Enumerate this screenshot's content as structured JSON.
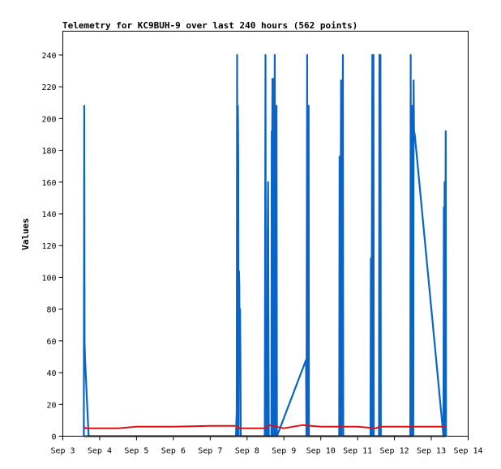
{
  "chart_data": {
    "type": "line",
    "title": "Telemetry for KC9BUH-9 over last 240 hours (562 points)",
    "xlabel": "",
    "ylabel": "Values",
    "x_ticks": [
      "Sep 3",
      "Sep 4",
      "Sep 5",
      "Sep 6",
      "Sep 7",
      "Sep 8",
      "Sep 9",
      "Sep 10",
      "Sep 11",
      "Sep 12",
      "Sep 13",
      "Sep 14"
    ],
    "xlim": [
      3.0,
      14.0
    ],
    "ylim": [
      0,
      255
    ],
    "y_ticks": [
      0,
      20,
      40,
      60,
      80,
      100,
      120,
      140,
      160,
      180,
      200,
      220,
      240
    ],
    "grid": false,
    "colors": {
      "series1": "#0a64c8",
      "series2": "#dd1111",
      "series3": "#222222"
    },
    "series": [
      {
        "name": "",
        "color": "#0a64c8",
        "points": [
          [
            3.57,
            0
          ],
          [
            3.58,
            208
          ],
          [
            3.59,
            60
          ],
          [
            3.6,
            50
          ],
          [
            3.62,
            40
          ],
          [
            3.7,
            0
          ],
          [
            7.7,
            0
          ],
          [
            7.72,
            16
          ],
          [
            7.73,
            240
          ],
          [
            7.74,
            0
          ],
          [
            7.75,
            208
          ],
          [
            7.76,
            173
          ],
          [
            7.77,
            0
          ],
          [
            7.78,
            104
          ],
          [
            7.79,
            96
          ],
          [
            7.8,
            40
          ],
          [
            7.81,
            80
          ],
          [
            7.82,
            48
          ],
          [
            7.83,
            0
          ],
          [
            8.48,
            0
          ],
          [
            8.5,
            240
          ],
          [
            8.51,
            0
          ],
          [
            8.55,
            0
          ],
          [
            8.56,
            128
          ],
          [
            8.57,
            160
          ],
          [
            8.58,
            80
          ],
          [
            8.59,
            0
          ],
          [
            8.66,
            0
          ],
          [
            8.67,
            192
          ],
          [
            8.68,
            176
          ],
          [
            8.69,
            225
          ],
          [
            8.7,
            224
          ],
          [
            8.71,
            0
          ],
          [
            8.72,
            225
          ],
          [
            8.73,
            208
          ],
          [
            8.74,
            0
          ],
          [
            8.75,
            240
          ],
          [
            8.76,
            176
          ],
          [
            8.77,
            160
          ],
          [
            8.78,
            0
          ],
          [
            8.79,
            192
          ],
          [
            8.8,
            208
          ],
          [
            8.81,
            0
          ],
          [
            9.6,
            48
          ],
          [
            9.61,
            0
          ],
          [
            9.63,
            240
          ],
          [
            9.64,
            0
          ],
          [
            9.67,
            208
          ],
          [
            9.68,
            0
          ],
          [
            10.5,
            0
          ],
          [
            10.51,
            176
          ],
          [
            10.52,
            0
          ],
          [
            10.55,
            224
          ],
          [
            10.56,
            0
          ],
          [
            10.6,
            240
          ],
          [
            10.61,
            0
          ],
          [
            11.35,
            0
          ],
          [
            11.36,
            112
          ],
          [
            11.37,
            0
          ],
          [
            11.4,
            240
          ],
          [
            11.41,
            0
          ],
          [
            11.43,
            240
          ],
          [
            11.44,
            0
          ],
          [
            11.58,
            0
          ],
          [
            11.59,
            240
          ],
          [
            11.6,
            0
          ],
          [
            11.62,
            240
          ],
          [
            11.63,
            0
          ],
          [
            12.43,
            0
          ],
          [
            12.44,
            240
          ],
          [
            12.45,
            0
          ],
          [
            12.47,
            208
          ],
          [
            12.48,
            192
          ],
          [
            12.49,
            0
          ],
          [
            12.5,
            40
          ],
          [
            12.51,
            0
          ],
          [
            12.52,
            224
          ],
          [
            12.53,
            192
          ],
          [
            12.55,
            190
          ],
          [
            13.33,
            0
          ],
          [
            13.34,
            144
          ],
          [
            13.35,
            0
          ],
          [
            13.36,
            160
          ],
          [
            13.37,
            0
          ],
          [
            13.39,
            192
          ],
          [
            13.4,
            0
          ]
        ]
      },
      {
        "name": "",
        "color": "#dd1111",
        "points": [
          [
            3.57,
            6
          ],
          [
            3.62,
            5
          ],
          [
            4.5,
            5
          ],
          [
            5.0,
            6
          ],
          [
            6.0,
            6
          ],
          [
            7.0,
            6.5
          ],
          [
            7.7,
            6.5
          ],
          [
            7.75,
            5
          ],
          [
            8.5,
            5
          ],
          [
            8.6,
            7
          ],
          [
            9.0,
            5
          ],
          [
            9.5,
            7
          ],
          [
            10.0,
            6
          ],
          [
            11.0,
            6
          ],
          [
            11.5,
            5
          ],
          [
            11.6,
            6
          ],
          [
            12.0,
            6
          ],
          [
            13.0,
            6
          ],
          [
            13.4,
            6
          ]
        ]
      },
      {
        "name": "",
        "color": "#222222",
        "points": [
          [
            3.57,
            0
          ],
          [
            13.4,
            0
          ]
        ]
      }
    ]
  }
}
